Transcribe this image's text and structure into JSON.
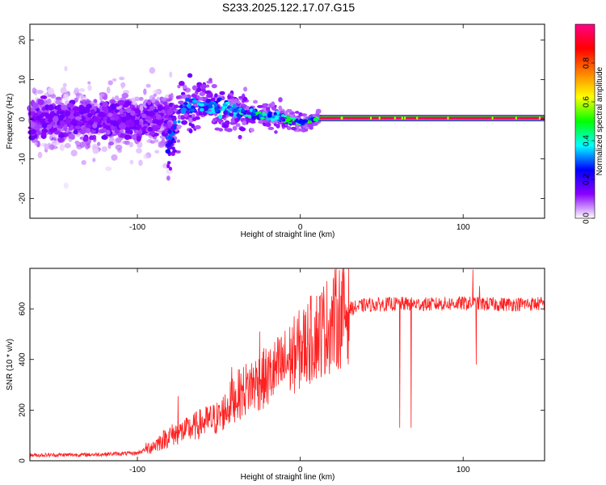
{
  "title": "S233.2025.122.17.07.G15",
  "chart_data": [
    {
      "type": "heatmap",
      "xlabel": "Height of straight line (km)",
      "ylabel": "Frequency (Hz)",
      "xlim": [
        -166,
        150
      ],
      "ylim": [
        -25,
        24
      ],
      "x_ticks": [
        -100,
        0,
        100
      ],
      "y_ticks": [
        -20,
        -10,
        0,
        10,
        20
      ],
      "colorbar": {
        "label": "Normalized spectral amplitude",
        "range": [
          0,
          1
        ],
        "ticks": [
          0.0,
          0.2,
          0.4,
          0.6,
          0.8
        ],
        "colormap": [
          "#ffffff",
          "#8a00ff",
          "#0000ff",
          "#00ffff",
          "#00ff00",
          "#ffff00",
          "#ff8000",
          "#ff0000",
          "#ff0088"
        ]
      },
      "features": {
        "signal_line_frequency_hz": 0.3,
        "signal_line_x_range_km": [
          12,
          150
        ],
        "signal_line_amplitude": 0.95,
        "diffuse_noise_x_range_km": [
          -166,
          -78
        ],
        "dip_minimum": {
          "x": -82,
          "y": -7
        },
        "rising_branch": [
          [
            -82,
            -7
          ],
          [
            -72,
            3
          ],
          [
            -60,
            4
          ],
          [
            -45,
            2.5
          ],
          [
            -30,
            1.5
          ],
          [
            -15,
            0.5
          ],
          [
            0,
            -0.8
          ],
          [
            12,
            0.3
          ]
        ]
      }
    },
    {
      "type": "line",
      "xlabel": "Height of straight line (km)",
      "ylabel": "SNR (10 * v/v)",
      "xlim": [
        -166,
        150
      ],
      "ylim": [
        0,
        760
      ],
      "x_ticks": [
        -100,
        0,
        100
      ],
      "y_ticks": [
        0,
        200,
        400,
        600
      ],
      "color": "#ff2020",
      "profile": [
        [
          -166,
          22
        ],
        [
          -130,
          24
        ],
        [
          -100,
          30
        ],
        [
          -90,
          60
        ],
        [
          -80,
          100
        ],
        [
          -70,
          120
        ],
        [
          -60,
          150
        ],
        [
          -50,
          170
        ],
        [
          -40,
          250
        ],
        [
          -30,
          300
        ],
        [
          -20,
          330
        ],
        [
          -10,
          380
        ],
        [
          0,
          440
        ],
        [
          10,
          500
        ],
        [
          20,
          550
        ],
        [
          30,
          600
        ],
        [
          40,
          615
        ],
        [
          60,
          620
        ],
        [
          80,
          618
        ],
        [
          100,
          622
        ],
        [
          120,
          618
        ],
        [
          150,
          620
        ]
      ],
      "spikes": [
        [
          -75,
          255
        ],
        [
          -42,
          370
        ],
        [
          -25,
          510
        ],
        [
          -20,
          410
        ],
        [
          5,
          460
        ],
        [
          61,
          130
        ],
        [
          68,
          130
        ],
        [
          86,
          630
        ],
        [
          100,
          640
        ],
        [
          106,
          755
        ],
        [
          108,
          380
        ],
        [
          110,
          690
        ]
      ]
    }
  ]
}
